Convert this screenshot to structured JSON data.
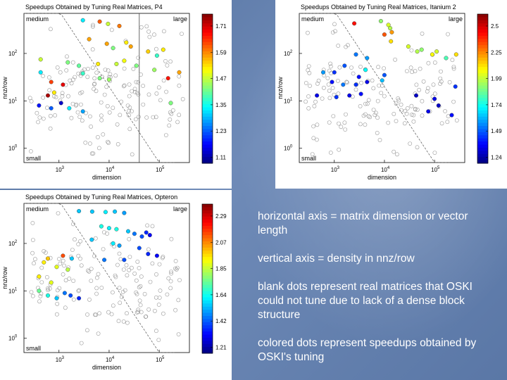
{
  "chart_data": [
    {
      "type": "scatter",
      "title": "Speedups Obtained by Tuning Real Matrices, P4",
      "xlabel": "dimension",
      "ylabel": "nnz/row",
      "xscale": "log",
      "yscale": "log",
      "xlim": [
        200,
        400000
      ],
      "ylim": [
        0.5,
        700
      ],
      "x_ticks": [
        {
          "base": "10",
          "exp": "3",
          "v": 1000
        },
        {
          "base": "10",
          "exp": "4",
          "v": 10000
        },
        {
          "base": "10",
          "exp": "5",
          "v": 100000
        }
      ],
      "y_ticks": [
        {
          "base": "10",
          "exp": "0",
          "v": 1
        },
        {
          "base": "10",
          "exp": "1",
          "v": 10
        },
        {
          "base": "10",
          "exp": "2",
          "v": 100
        }
      ],
      "region_labels": {
        "top_left": "medium",
        "top_right": "large",
        "bottom_left": "small"
      },
      "boundary_x": 40000,
      "colorbar": {
        "min": 1.05,
        "max": 1.75,
        "ticks": [
          "1.71",
          "1.59",
          "1.47",
          "1.35",
          "1.23",
          "1.11"
        ]
      },
      "colored_points": [
        {
          "x": 3000,
          "y": 500,
          "s": 1.3
        },
        {
          "x": 6500,
          "y": 470,
          "s": 1.6
        },
        {
          "x": 9500,
          "y": 420,
          "s": 1.45
        },
        {
          "x": 16000,
          "y": 380,
          "s": 1.58
        },
        {
          "x": 4000,
          "y": 200,
          "s": 1.55
        },
        {
          "x": 9000,
          "y": 160,
          "s": 1.55
        },
        {
          "x": 12000,
          "y": 130,
          "s": 1.4
        },
        {
          "x": 27000,
          "y": 140,
          "s": 1.55
        },
        {
          "x": 22000,
          "y": 170,
          "s": 1.5
        },
        {
          "x": 60000,
          "y": 110,
          "s": 1.52
        },
        {
          "x": 90000,
          "y": 90,
          "s": 1.35
        },
        {
          "x": 120000,
          "y": 120,
          "s": 1.5
        },
        {
          "x": 430,
          "y": 75,
          "s": 1.45
        },
        {
          "x": 1500,
          "y": 65,
          "s": 1.4
        },
        {
          "x": 2500,
          "y": 55,
          "s": 1.38
        },
        {
          "x": 6000,
          "y": 60,
          "s": 1.5
        },
        {
          "x": 14000,
          "y": 60,
          "s": 1.45
        },
        {
          "x": 20000,
          "y": 70,
          "s": 1.48
        },
        {
          "x": 35000,
          "y": 55,
          "s": 1.4
        },
        {
          "x": 80000,
          "y": 45,
          "s": 1.42
        },
        {
          "x": 150000,
          "y": 30,
          "s": 1.65
        },
        {
          "x": 250000,
          "y": 40,
          "s": 1.55
        },
        {
          "x": 430,
          "y": 40,
          "s": 1.3
        },
        {
          "x": 3000,
          "y": 38,
          "s": 1.35
        },
        {
          "x": 6500,
          "y": 30,
          "s": 1.4
        },
        {
          "x": 10000,
          "y": 28,
          "s": 1.42
        },
        {
          "x": 700,
          "y": 25,
          "s": 1.62
        },
        {
          "x": 1200,
          "y": 22,
          "s": 1.68
        },
        {
          "x": 600,
          "y": 13,
          "s": 1.72
        },
        {
          "x": 800,
          "y": 15,
          "s": 1.5
        },
        {
          "x": 400,
          "y": 8,
          "s": 1.15
        },
        {
          "x": 700,
          "y": 7,
          "s": 1.2
        },
        {
          "x": 1100,
          "y": 9,
          "s": 1.1
        },
        {
          "x": 1600,
          "y": 7,
          "s": 1.3
        },
        {
          "x": 3000,
          "y": 6,
          "s": 1.25
        },
        {
          "x": 170000,
          "y": 9,
          "s": 1.4
        }
      ]
    },
    {
      "type": "scatter",
      "title": "Speedups Obtained by Tuning Real Matrices, Itanium 2",
      "xlabel": "dimension",
      "ylabel": "nnz/row",
      "xscale": "log",
      "yscale": "log",
      "xlim": [
        200,
        400000
      ],
      "ylim": [
        0.5,
        700
      ],
      "x_ticks": [
        {
          "base": "10",
          "exp": "3",
          "v": 1000
        },
        {
          "base": "10",
          "exp": "4",
          "v": 10000
        },
        {
          "base": "10",
          "exp": "5",
          "v": 100000
        }
      ],
      "y_ticks": [
        {
          "base": "10",
          "exp": "0",
          "v": 1
        },
        {
          "base": "10",
          "exp": "1",
          "v": 10
        },
        {
          "base": "10",
          "exp": "2",
          "v": 100
        }
      ],
      "region_labels": {
        "top_left": "medium",
        "top_right": "large",
        "bottom_left": "small"
      },
      "boundary_x": null,
      "colorbar": {
        "min": 1.15,
        "max": 2.6,
        "ticks": [
          "2.5",
          "2.25",
          "1.99",
          "1.74",
          "1.49",
          "1.24"
        ]
      },
      "colored_points": [
        {
          "x": 2500,
          "y": 430,
          "s": 2.4
        },
        {
          "x": 8500,
          "y": 480,
          "s": 1.9
        },
        {
          "x": 12000,
          "y": 400,
          "s": 2.0
        },
        {
          "x": 13000,
          "y": 340,
          "s": 1.95
        },
        {
          "x": 10000,
          "y": 250,
          "s": 2.3
        },
        {
          "x": 14000,
          "y": 280,
          "s": 2.2
        },
        {
          "x": 13500,
          "y": 180,
          "s": 2.1
        },
        {
          "x": 30000,
          "y": 140,
          "s": 2.0
        },
        {
          "x": 45000,
          "y": 110,
          "s": 1.95
        },
        {
          "x": 55000,
          "y": 120,
          "s": 1.9
        },
        {
          "x": 90000,
          "y": 95,
          "s": 2.05
        },
        {
          "x": 110000,
          "y": 110,
          "s": 2.0
        },
        {
          "x": 170000,
          "y": 80,
          "s": 1.8
        },
        {
          "x": 270000,
          "y": 95,
          "s": 2.1
        },
        {
          "x": 2700,
          "y": 95,
          "s": 1.5
        },
        {
          "x": 4500,
          "y": 80,
          "s": 1.55
        },
        {
          "x": 1600,
          "y": 55,
          "s": 1.45
        },
        {
          "x": 4200,
          "y": 45,
          "s": 1.7
        },
        {
          "x": 1000,
          "y": 40,
          "s": 1.4
        },
        {
          "x": 600,
          "y": 40,
          "s": 1.55
        },
        {
          "x": 900,
          "y": 25,
          "s": 1.35
        },
        {
          "x": 1500,
          "y": 22,
          "s": 1.5
        },
        {
          "x": 2700,
          "y": 22,
          "s": 1.4
        },
        {
          "x": 3100,
          "y": 32,
          "s": 1.35
        },
        {
          "x": 4500,
          "y": 25,
          "s": 1.3
        },
        {
          "x": 9000,
          "y": 27,
          "s": 1.6
        },
        {
          "x": 10000,
          "y": 35,
          "s": 1.45
        },
        {
          "x": 450,
          "y": 13,
          "s": 1.3
        },
        {
          "x": 1100,
          "y": 12,
          "s": 1.4
        },
        {
          "x": 2000,
          "y": 13,
          "s": 1.3
        },
        {
          "x": 3400,
          "y": 14,
          "s": 1.35
        },
        {
          "x": 43000,
          "y": 13,
          "s": 1.25
        },
        {
          "x": 100000,
          "y": 11,
          "s": 1.3
        },
        {
          "x": 120000,
          "y": 8,
          "s": 1.25
        },
        {
          "x": 260000,
          "y": 20,
          "s": 1.4
        },
        {
          "x": 75000,
          "y": 6,
          "s": 1.3
        },
        {
          "x": 220000,
          "y": 5,
          "s": 1.35
        }
      ]
    },
    {
      "type": "scatter",
      "title": "Speedups Obtained by Tuning Real Matrices, Opteron",
      "xlabel": "dimension",
      "ylabel": "nnz/row",
      "xscale": "log",
      "yscale": "log",
      "xlim": [
        200,
        400000
      ],
      "ylim": [
        0.5,
        700
      ],
      "x_ticks": [
        {
          "base": "10",
          "exp": "3",
          "v": 1000
        },
        {
          "base": "10",
          "exp": "4",
          "v": 10000
        },
        {
          "base": "10",
          "exp": "5",
          "v": 100000
        }
      ],
      "y_ticks": [
        {
          "base": "10",
          "exp": "0",
          "v": 1
        },
        {
          "base": "10",
          "exp": "1",
          "v": 10
        },
        {
          "base": "10",
          "exp": "2",
          "v": 100
        }
      ],
      "region_labels": {
        "top_left": "medium",
        "top_right": "large",
        "bottom_left": "small"
      },
      "boundary_x": null,
      "colorbar": {
        "min": 1.1,
        "max": 2.35,
        "ticks": [
          "2.29",
          "2.07",
          "1.85",
          "1.64",
          "1.42",
          "1.21"
        ]
      },
      "colored_points": [
        {
          "x": 2500,
          "y": 480,
          "s": 1.5
        },
        {
          "x": 4600,
          "y": 470,
          "s": 1.5
        },
        {
          "x": 8500,
          "y": 460,
          "s": 1.55
        },
        {
          "x": 13000,
          "y": 470,
          "s": 1.5
        },
        {
          "x": 20000,
          "y": 440,
          "s": 1.45
        },
        {
          "x": 7000,
          "y": 230,
          "s": 1.6
        },
        {
          "x": 10000,
          "y": 210,
          "s": 1.55
        },
        {
          "x": 14000,
          "y": 200,
          "s": 1.6
        },
        {
          "x": 24000,
          "y": 180,
          "s": 1.5
        },
        {
          "x": 32000,
          "y": 160,
          "s": 1.4
        },
        {
          "x": 45000,
          "y": 140,
          "s": 1.35
        },
        {
          "x": 55000,
          "y": 170,
          "s": 1.3
        },
        {
          "x": 65000,
          "y": 150,
          "s": 1.25
        },
        {
          "x": 4500,
          "y": 120,
          "s": 1.5
        },
        {
          "x": 12000,
          "y": 100,
          "s": 1.55
        },
        {
          "x": 16000,
          "y": 90,
          "s": 1.45
        },
        {
          "x": 40000,
          "y": 80,
          "s": 1.35
        },
        {
          "x": 60000,
          "y": 60,
          "s": 1.3
        },
        {
          "x": 90000,
          "y": 55,
          "s": 1.25
        },
        {
          "x": 8000,
          "y": 45,
          "s": 1.4
        },
        {
          "x": 20000,
          "y": 45,
          "s": 1.35
        },
        {
          "x": 1200,
          "y": 55,
          "s": 2.1
        },
        {
          "x": 1800,
          "y": 48,
          "s": 1.5
        },
        {
          "x": 600,
          "y": 48,
          "s": 1.95
        },
        {
          "x": 500,
          "y": 40,
          "s": 1.9
        },
        {
          "x": 900,
          "y": 32,
          "s": 1.85
        },
        {
          "x": 1500,
          "y": 28,
          "s": 1.8
        },
        {
          "x": 400,
          "y": 20,
          "s": 1.9
        },
        {
          "x": 700,
          "y": 15,
          "s": 1.85
        },
        {
          "x": 400,
          "y": 10,
          "s": 1.7
        },
        {
          "x": 600,
          "y": 8,
          "s": 1.6
        },
        {
          "x": 900,
          "y": 7,
          "s": 1.5
        },
        {
          "x": 1300,
          "y": 9,
          "s": 1.4
        },
        {
          "x": 1700,
          "y": 8,
          "s": 1.35
        },
        {
          "x": 2500,
          "y": 7,
          "s": 1.3
        }
      ]
    }
  ],
  "caption": [
    "horizontal axis = matrix dimension or vector length",
    "vertical axis = density in nnz/row",
    "blank dots represent real matrices that OSKI could not tune due to lack of a dense block structure",
    "colored dots represent speedups obtained by OSKI's tuning"
  ]
}
